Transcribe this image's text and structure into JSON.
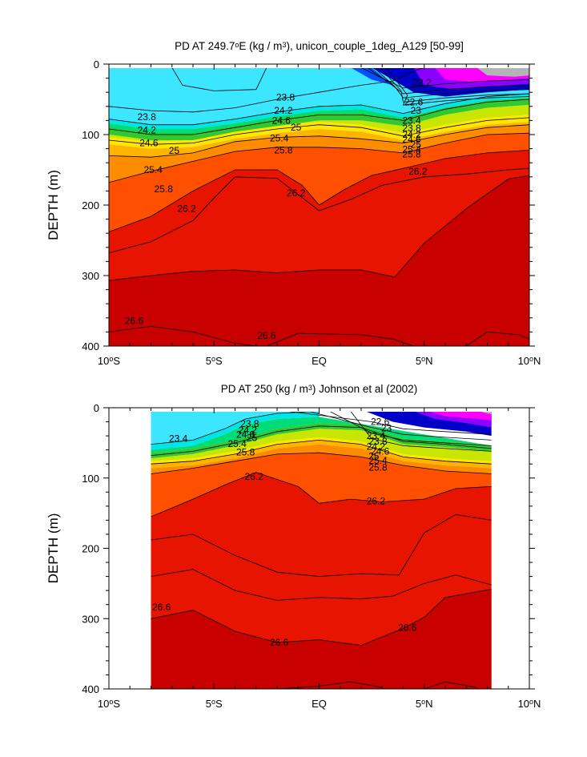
{
  "chart_data": [
    {
      "type": "contour",
      "title": "PD AT 249.7°E (kg / m³), unicon_couple_1deg_A129 [50-99]",
      "title_parts": {
        "prefix": "PD AT 249.7",
        "deg": "o",
        "suffix1": "E (kg / m",
        "sup": "3",
        "suffix2": "), unicon_couple_1deg_A129 [50-99]"
      },
      "ylabel": "DEPTH (m)",
      "xlim": [
        -10,
        10
      ],
      "ylim": [
        400,
        0
      ],
      "x_ticks": [
        {
          "value": -10,
          "label": "10",
          "deg": "o",
          "suffix": "S"
        },
        {
          "value": -5,
          "label": "5",
          "deg": "o",
          "suffix": "S"
        },
        {
          "value": 0,
          "label": "EQ",
          "deg": "",
          "suffix": ""
        },
        {
          "value": 5,
          "label": "5",
          "deg": "o",
          "suffix": "N"
        },
        {
          "value": 10,
          "label": "10",
          "deg": "o",
          "suffix": "N"
        }
      ],
      "y_ticks": [
        0,
        100,
        200,
        300,
        400
      ],
      "levels": [
        22.2,
        22.6,
        23.0,
        23.4,
        23.8,
        24.2,
        24.6,
        25.0,
        25.4,
        25.8,
        26.2,
        26.6
      ],
      "contour_labels": [
        {
          "text": "23.8",
          "x": -8.2,
          "y": 75
        },
        {
          "text": "23.8",
          "x": -1.6,
          "y": 47
        },
        {
          "text": "24.2",
          "x": -8.2,
          "y": 94
        },
        {
          "text": "24.2",
          "x": -1.7,
          "y": 66
        },
        {
          "text": "24.6",
          "x": -8.1,
          "y": 112
        },
        {
          "text": "24.6",
          "x": -1.8,
          "y": 80
        },
        {
          "text": "25",
          "x": -6.9,
          "y": 123
        },
        {
          "text": "25",
          "x": -1.1,
          "y": 90
        },
        {
          "text": "25.4",
          "x": -7.9,
          "y": 150
        },
        {
          "text": "25.4",
          "x": -1.9,
          "y": 105
        },
        {
          "text": "25.8",
          "x": -7.4,
          "y": 177
        },
        {
          "text": "25.8",
          "x": -1.7,
          "y": 122
        },
        {
          "text": "26.2",
          "x": -6.3,
          "y": 205
        },
        {
          "text": "26.2",
          "x": -1.1,
          "y": 183
        },
        {
          "text": "26.2",
          "x": 4.7,
          "y": 152
        },
        {
          "text": "22.2",
          "x": 4.9,
          "y": 26
        },
        {
          "text": "22.6",
          "x": 4.5,
          "y": 54
        },
        {
          "text": "23",
          "x": 4.6,
          "y": 66
        },
        {
          "text": "23.4",
          "x": 4.4,
          "y": 80
        },
        {
          "text": "23.8",
          "x": 4.4,
          "y": 91
        },
        {
          "text": "24.2",
          "x": 4.4,
          "y": 100
        },
        {
          "text": "24.6",
          "x": 4.4,
          "y": 107
        },
        {
          "text": "25",
          "x": 4.6,
          "y": 114
        },
        {
          "text": "25.4",
          "x": 4.4,
          "y": 121
        },
        {
          "text": "25.8",
          "x": 4.4,
          "y": 128
        },
        {
          "text": "26.6",
          "x": -8.8,
          "y": 364
        },
        {
          "text": "26.6",
          "x": -2.5,
          "y": 385
        }
      ]
    },
    {
      "type": "contour",
      "title": "PD AT 250 (kg / m³) Johnson et al (2002)",
      "title_parts": {
        "prefix": "PD AT 250 (kg / m",
        "sup": "3",
        "suffix": ") Johnson et al (2002)"
      },
      "ylabel": "DEPTH (m)",
      "xlim": [
        -10,
        10
      ],
      "ylim": [
        400,
        0
      ],
      "data_xlim": [
        -8,
        8.2
      ],
      "x_ticks": [
        {
          "value": -10,
          "label": "10",
          "deg": "o",
          "suffix": "S"
        },
        {
          "value": -5,
          "label": "5",
          "deg": "o",
          "suffix": "S"
        },
        {
          "value": 0,
          "label": "EQ",
          "deg": "",
          "suffix": ""
        },
        {
          "value": 5,
          "label": "5",
          "deg": "o",
          "suffix": "N"
        },
        {
          "value": 10,
          "label": "10",
          "deg": "o",
          "suffix": "N"
        }
      ],
      "y_ticks": [
        0,
        100,
        200,
        300,
        400
      ],
      "levels": [
        22.2,
        22.6,
        23.0,
        23.4,
        23.8,
        24.2,
        24.6,
        25.0,
        25.4,
        25.8,
        26.2,
        26.6
      ],
      "contour_labels": [
        {
          "text": "23.4",
          "x": -6.7,
          "y": 44
        },
        {
          "text": "23.8",
          "x": -3.3,
          "y": 23
        },
        {
          "text": "24.2",
          "x": -3.4,
          "y": 32
        },
        {
          "text": "24.6",
          "x": -3.5,
          "y": 38
        },
        {
          "text": "25",
          "x": -3.2,
          "y": 43
        },
        {
          "text": "25.4",
          "x": -3.9,
          "y": 51
        },
        {
          "text": "25.8",
          "x": -3.5,
          "y": 63
        },
        {
          "text": "26.2",
          "x": -3.1,
          "y": 98
        },
        {
          "text": "26.2",
          "x": 2.7,
          "y": 133
        },
        {
          "text": "22.6",
          "x": 2.9,
          "y": 20
        },
        {
          "text": "23",
          "x": 3.2,
          "y": 29
        },
        {
          "text": "23.4",
          "x": 2.7,
          "y": 40
        },
        {
          "text": "23.8",
          "x": 2.8,
          "y": 48
        },
        {
          "text": "24.2",
          "x": 2.7,
          "y": 55
        },
        {
          "text": "24.6",
          "x": 2.9,
          "y": 62
        },
        {
          "text": "25",
          "x": 2.6,
          "y": 69
        },
        {
          "text": "25.4",
          "x": 2.8,
          "y": 75
        },
        {
          "text": "25.8",
          "x": 2.8,
          "y": 85
        },
        {
          "text": "26.6",
          "x": -7.5,
          "y": 284
        },
        {
          "text": "26.6",
          "x": -1.9,
          "y": 334
        },
        {
          "text": "26.6",
          "x": 4.2,
          "y": 313
        }
      ]
    }
  ],
  "colors": {
    "deep": "#c80000",
    "red": "#e61400",
    "orange_red": "#ff5000",
    "orange": "#ff8c00",
    "amber": "#ffb400",
    "yellow": "#ffe600",
    "yellow_green": "#c8e600",
    "green": "#32c832",
    "green2": "#00dc78",
    "cyan": "#00e6e6",
    "light_cyan": "#3ce6ff",
    "blue": "#0050ff",
    "dark_blue": "#0000c8",
    "purple": "#8c00ff",
    "magenta": "#ff00ff",
    "gray": "#b4b4b4"
  }
}
